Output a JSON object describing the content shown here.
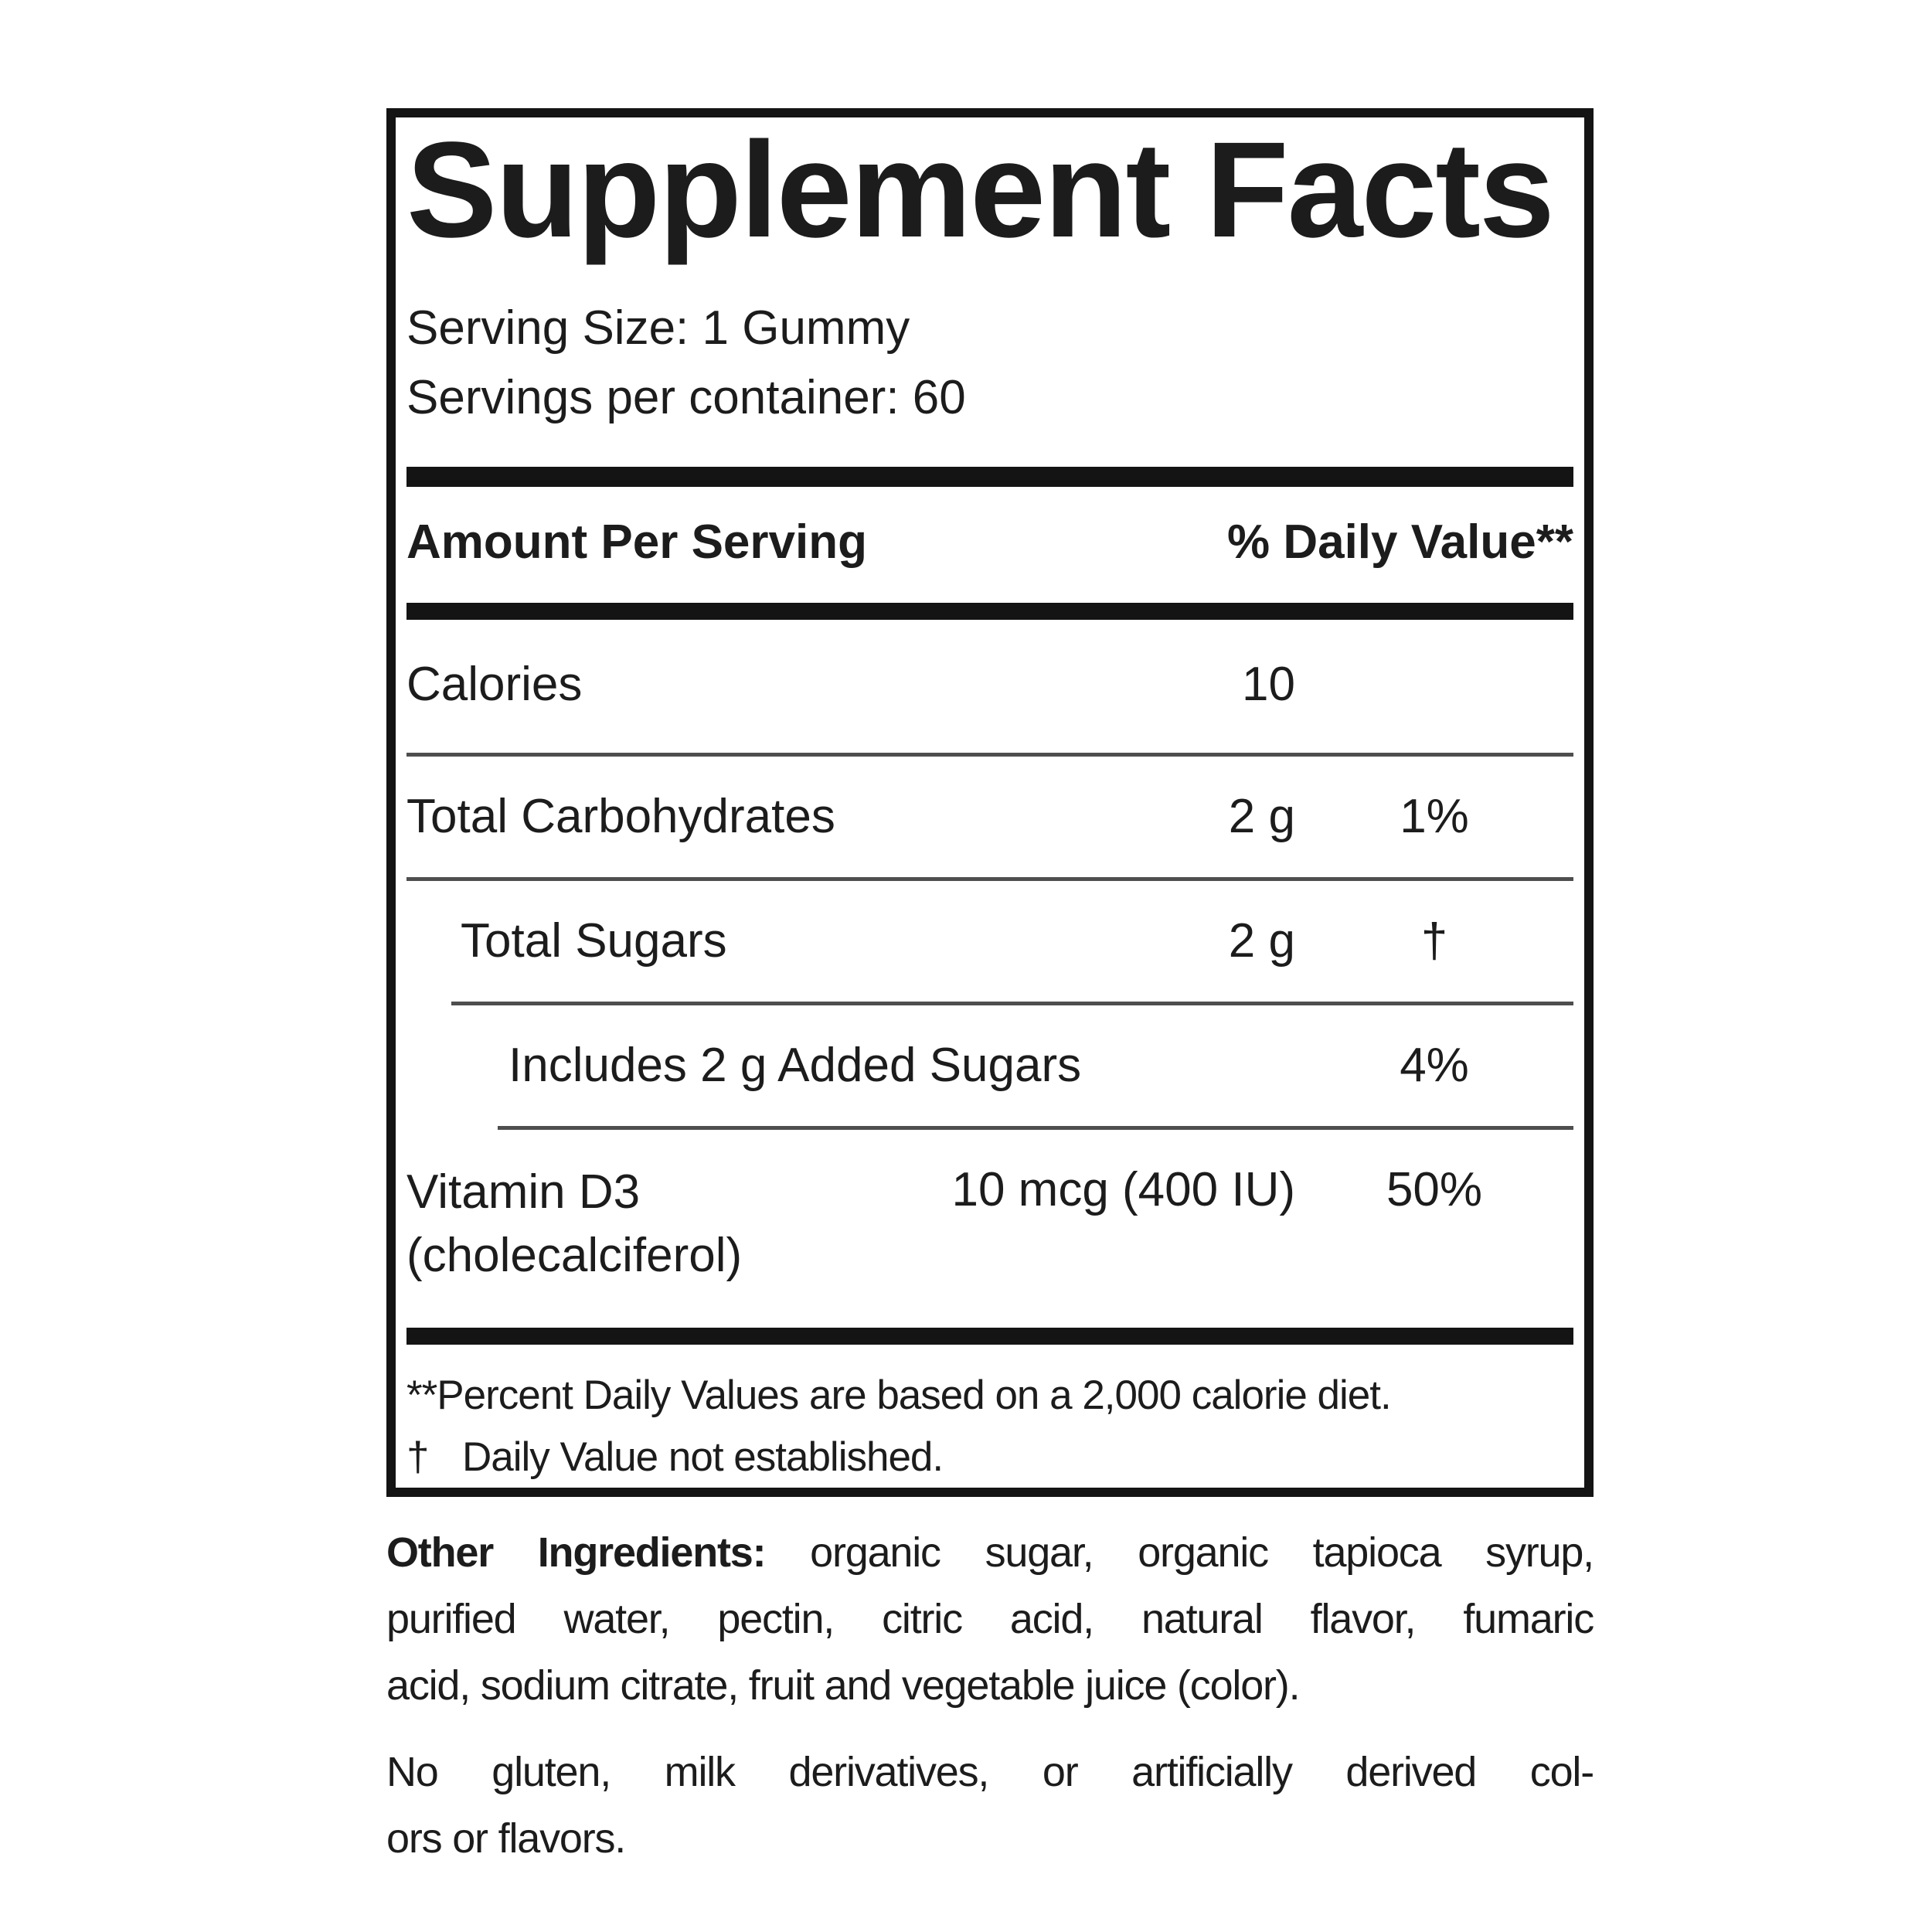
{
  "colors": {
    "text": "#1c1c1c",
    "bar": "#141414",
    "divider": "#4e4e4e",
    "border": "#141414",
    "bg": "#ffffff"
  },
  "supplement_facts": {
    "title": "Supplement Facts",
    "serving_size": "Serving Size: 1 Gummy",
    "servings_per_container": "Servings per container: 60",
    "header": {
      "amount_col": "Amount Per Serving",
      "dv_col": "% Daily Value**"
    },
    "rows": [
      {
        "name": "Calories",
        "amount": "10",
        "dv": ""
      },
      {
        "name": "Total Carbohydrates",
        "amount": "2 g",
        "dv": "1%"
      },
      {
        "name": "Total Sugars",
        "amount": "2 g",
        "dv": "†"
      },
      {
        "name": "Includes 2 g Added Sugars",
        "amount": "",
        "dv": "4%"
      },
      {
        "name": "Vitamin D3",
        "name_line2": "(cholecalciferol)",
        "amount": "10 mcg (400 IU)",
        "dv": "50%"
      }
    ],
    "footnotes": {
      "percent_dv": "**Percent Daily Values are based on a 2,000 calorie diet.",
      "dagger_symbol": "†",
      "dagger_text": "Daily Value not established."
    }
  },
  "other_ingredients": {
    "label": "Other Ingredients:",
    "line1_rest": "organic sugar, organic tapioca syrup,",
    "line2": "purified water, pectin, citric acid, natural flavor, fumaric",
    "line3": "acid, sodium citrate, fruit and vegetable juice (color)."
  },
  "allergen_statement": {
    "line1": "No gluten, milk derivatives, or artificially derived col-",
    "line2": "ors or flavors."
  }
}
